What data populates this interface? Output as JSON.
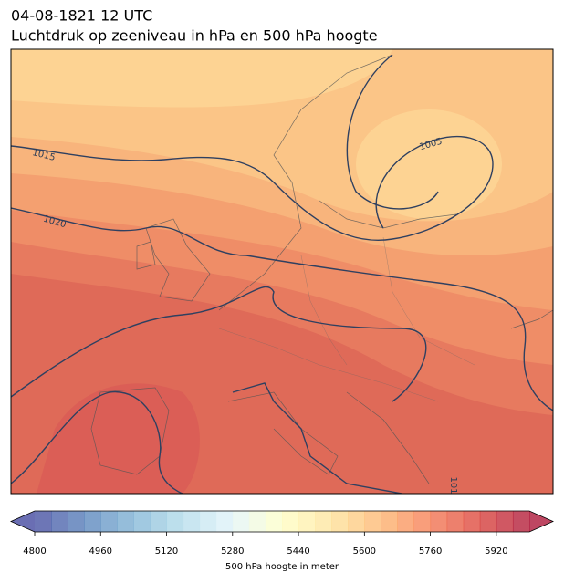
{
  "header": {
    "title": "04-08-1821 12 UTC",
    "subtitle": "Luchtdruk op zeeniveau in hPa en 500 hPa hoogte"
  },
  "contour_labels": [
    "1015",
    "1020",
    "1005",
    "101"
  ],
  "chart_data": {
    "type": "colorbar",
    "xlabel": "500 hPa hoogte in meter",
    "xlim": [
      4800,
      6000
    ],
    "xticks": [
      4800,
      4960,
      5120,
      5280,
      5440,
      5600,
      5760,
      5920
    ],
    "bins": 30,
    "extend": "both",
    "alpha": 0.72,
    "colormap": [
      "#313695",
      "#4575b4",
      "#74add1",
      "#abd9e9",
      "#e0f3f8",
      "#ffffbf",
      "#fee090",
      "#fdae61",
      "#f46d43",
      "#d73027",
      "#a50026"
    ]
  }
}
